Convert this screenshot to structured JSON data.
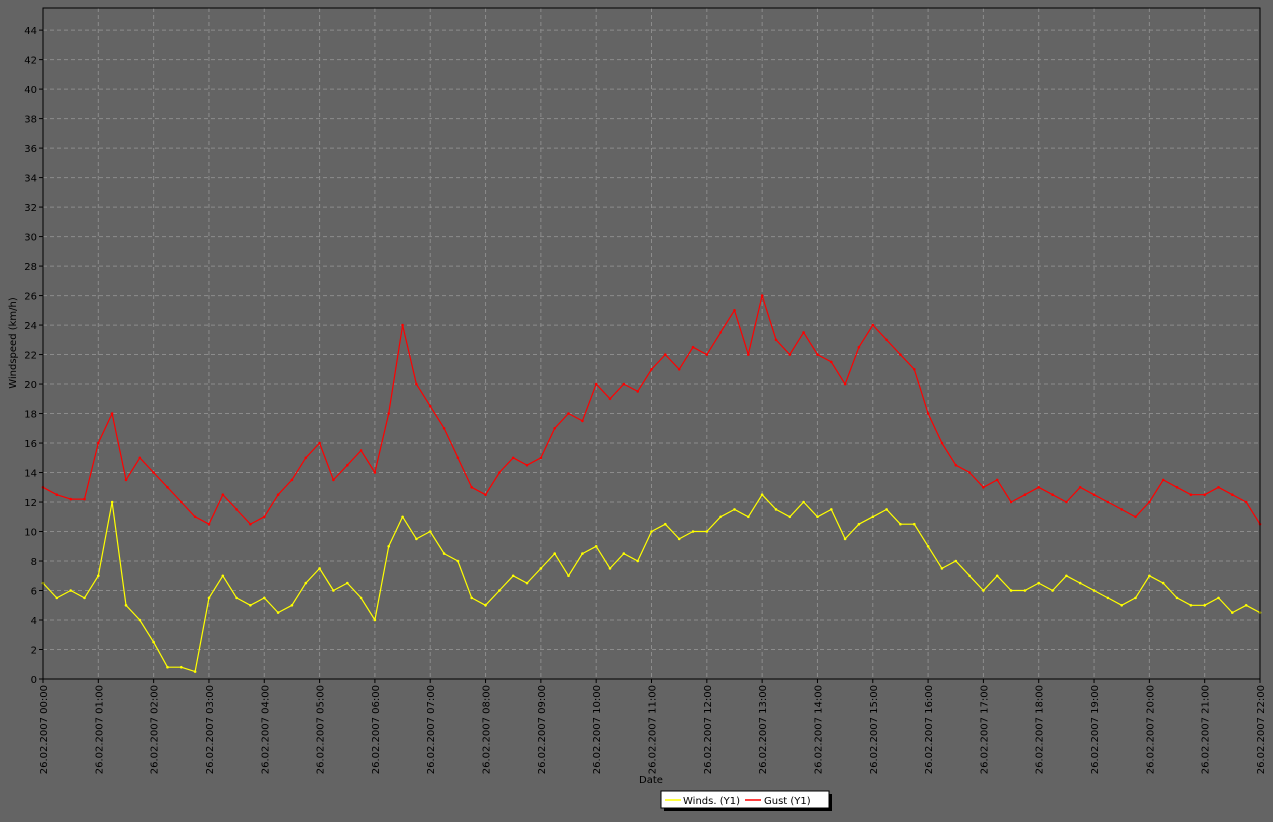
{
  "colors": {
    "background": "#646464",
    "plot_background": "#646464",
    "grid": "#8c8c8c",
    "axis": "#000000",
    "winds": "#ffff00",
    "gust": "#ff0000",
    "legend_background": "#ffffff"
  },
  "chart_data": {
    "type": "line",
    "title": "",
    "xlabel": "Date",
    "ylabel": "Windspeed (km/h)",
    "ylim": [
      0,
      45.5
    ],
    "y_ticks": [
      0,
      2,
      4,
      6,
      8,
      10,
      12,
      14,
      16,
      18,
      20,
      22,
      24,
      26,
      28,
      30,
      32,
      34,
      36,
      38,
      40,
      42,
      44
    ],
    "x_unit": "hours since 26.02.2007 00:00",
    "xlim": [
      0,
      22
    ],
    "x_ticks": [
      0,
      1,
      2,
      3,
      4,
      5,
      6,
      7,
      8,
      9,
      10,
      11,
      12,
      13,
      14,
      15,
      16,
      17,
      18,
      19,
      20,
      21,
      22
    ],
    "x_tick_labels": [
      "26.02.2007 00:00",
      "26.02.2007 01:00",
      "26.02.2007 02:00",
      "26.02.2007 03:00",
      "26.02.2007 04:00",
      "26.02.2007 05:00",
      "26.02.2007 06:00",
      "26.02.2007 07:00",
      "26.02.2007 08:00",
      "26.02.2007 09:00",
      "26.02.2007 10:00",
      "26.02.2007 11:00",
      "26.02.2007 12:00",
      "26.02.2007 13:00",
      "26.02.2007 14:00",
      "26.02.2007 15:00",
      "26.02.2007 16:00",
      "26.02.2007 17:00",
      "26.02.2007 18:00",
      "26.02.2007 19:00",
      "26.02.2007 20:00",
      "26.02.2007 21:00",
      "26.02.2007 22:00"
    ],
    "grid": true,
    "legend_position": "bottom-center",
    "series": [
      {
        "name": "Winds. (Y1)",
        "color": "#ffff00",
        "x": [
          0,
          0.25,
          0.5,
          0.75,
          1,
          1.25,
          1.5,
          1.75,
          2,
          2.25,
          2.5,
          2.75,
          3,
          3.25,
          3.5,
          3.75,
          4,
          4.25,
          4.5,
          4.75,
          5,
          5.25,
          5.5,
          5.75,
          6,
          6.25,
          6.5,
          6.75,
          7,
          7.25,
          7.5,
          7.75,
          8,
          8.25,
          8.5,
          8.75,
          9,
          9.25,
          9.5,
          9.75,
          10,
          10.25,
          10.5,
          10.75,
          11,
          11.25,
          11.5,
          11.75,
          12,
          12.25,
          12.5,
          12.75,
          13,
          13.25,
          13.5,
          13.75,
          14,
          14.25,
          14.5,
          14.75,
          15,
          15.25,
          15.5,
          15.75,
          16,
          16.25,
          16.5,
          16.75,
          17,
          17.25,
          17.5,
          17.75,
          18,
          18.25,
          18.5,
          18.75,
          19,
          19.25,
          19.5,
          19.75,
          20,
          20.25,
          20.5,
          20.75,
          21,
          21.25,
          21.5,
          21.75,
          22
        ],
        "y": [
          6.5,
          5.5,
          6,
          5.5,
          7,
          12,
          5,
          4,
          2.5,
          0.8,
          0.8,
          0.5,
          5.5,
          7,
          5.5,
          5,
          5.5,
          4.5,
          5,
          6.5,
          7.5,
          6,
          6.5,
          5.5,
          4,
          9,
          11,
          9.5,
          10,
          8.5,
          8,
          5.5,
          5,
          6,
          7,
          6.5,
          7.5,
          8.5,
          7,
          8.5,
          9,
          7.5,
          8.5,
          8,
          10,
          10.5,
          9.5,
          10,
          10,
          11,
          11.5,
          11,
          12.5,
          11.5,
          11,
          12,
          11,
          11.5,
          9.5,
          10.5,
          11,
          11.5,
          10.5,
          10.5,
          9,
          7.5,
          8,
          7,
          6,
          7,
          6,
          6,
          6.5,
          6,
          7,
          6.5,
          6,
          5.5,
          5,
          5.5,
          7,
          6.5,
          5.5,
          5,
          5,
          5.5,
          4.5,
          5,
          4.5
        ]
      },
      {
        "name": "Gust (Y1)",
        "color": "#ff0000",
        "x": [
          0,
          0.25,
          0.5,
          0.75,
          1,
          1.25,
          1.5,
          1.75,
          2,
          2.25,
          2.5,
          2.75,
          3,
          3.25,
          3.5,
          3.75,
          4,
          4.25,
          4.5,
          4.75,
          5,
          5.25,
          5.5,
          5.75,
          6,
          6.25,
          6.5,
          6.75,
          7,
          7.25,
          7.5,
          7.75,
          8,
          8.25,
          8.5,
          8.75,
          9,
          9.25,
          9.5,
          9.75,
          10,
          10.25,
          10.5,
          10.75,
          11,
          11.25,
          11.5,
          11.75,
          12,
          12.25,
          12.5,
          12.75,
          13,
          13.25,
          13.5,
          13.75,
          14,
          14.25,
          14.5,
          14.75,
          15,
          15.25,
          15.5,
          15.75,
          16,
          16.25,
          16.5,
          16.75,
          17,
          17.25,
          17.5,
          17.75,
          18,
          18.25,
          18.5,
          18.75,
          19,
          19.25,
          19.5,
          19.75,
          20,
          20.25,
          20.5,
          20.75,
          21,
          21.25,
          21.5,
          21.75,
          22
        ],
        "y": [
          13,
          12.5,
          12.2,
          12.2,
          16,
          18,
          13.5,
          15,
          14,
          13,
          12,
          11,
          10.5,
          12.5,
          11.5,
          10.5,
          11,
          12.5,
          13.5,
          15,
          16,
          13.5,
          14.5,
          15.5,
          14,
          18,
          24,
          20,
          18.5,
          17,
          15,
          13,
          12.5,
          14,
          15,
          14.5,
          15,
          17,
          18,
          17.5,
          20,
          19,
          20,
          19.5,
          21,
          22,
          21,
          22.5,
          22,
          23.5,
          25,
          22,
          26,
          23,
          22,
          23.5,
          22,
          21.5,
          20,
          22.5,
          24,
          23,
          22,
          21,
          18,
          16,
          14.5,
          14,
          13,
          13.5,
          12,
          12.5,
          13,
          12.5,
          12,
          13,
          12.5,
          12,
          11.5,
          11,
          12,
          13.5,
          13,
          12.5,
          12.5,
          13,
          12.5,
          12,
          10.5
        ]
      }
    ]
  }
}
